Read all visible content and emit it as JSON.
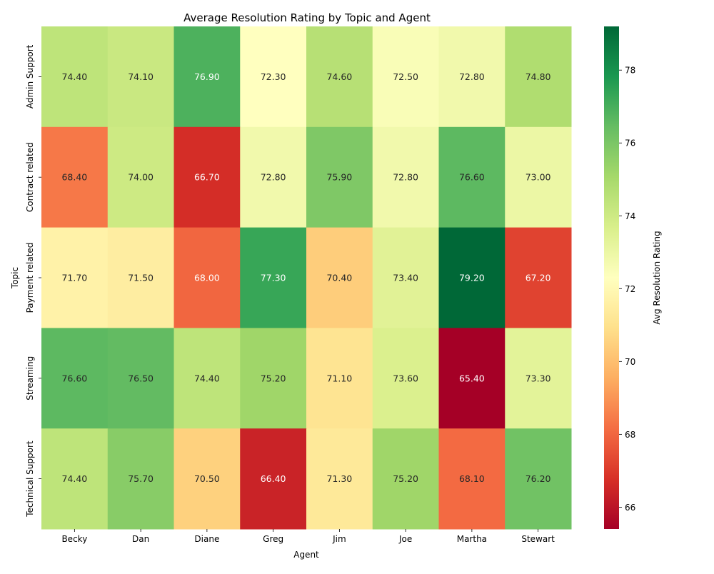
{
  "chart_data": {
    "type": "heatmap",
    "title": "Average Resolution Rating by Topic and Agent",
    "xlabel": "Agent",
    "ylabel": "Topic",
    "x_categories": [
      "Becky",
      "Dan",
      "Diane",
      "Greg",
      "Jim",
      "Joe",
      "Martha",
      "Stewart"
    ],
    "y_categories": [
      "Admin Support",
      "Contract related",
      "Payment related",
      "Streaming",
      "Technical Support"
    ],
    "values": [
      [
        74.4,
        74.1,
        76.9,
        72.3,
        74.6,
        72.5,
        72.8,
        74.8
      ],
      [
        68.4,
        74.0,
        66.7,
        72.8,
        75.9,
        72.8,
        76.6,
        73.0
      ],
      [
        71.7,
        71.5,
        68.0,
        77.3,
        70.4,
        73.4,
        79.2,
        67.2
      ],
      [
        76.6,
        76.5,
        74.4,
        75.2,
        71.1,
        73.6,
        65.4,
        73.3
      ],
      [
        74.4,
        75.7,
        70.5,
        66.4,
        71.3,
        75.2,
        68.1,
        76.2
      ]
    ],
    "value_labels": [
      [
        "74.40",
        "74.10",
        "76.90",
        "72.30",
        "74.60",
        "72.50",
        "72.80",
        "74.80"
      ],
      [
        "68.40",
        "74.00",
        "66.70",
        "72.80",
        "75.90",
        "72.80",
        "76.60",
        "73.00"
      ],
      [
        "71.70",
        "71.50",
        "68.00",
        "77.30",
        "70.40",
        "73.40",
        "79.20",
        "67.20"
      ],
      [
        "76.60",
        "76.50",
        "74.40",
        "75.20",
        "71.10",
        "73.60",
        "65.40",
        "73.30"
      ],
      [
        "74.40",
        "75.70",
        "70.50",
        "66.40",
        "71.30",
        "75.20",
        "68.10",
        "76.20"
      ]
    ],
    "colorbar": {
      "label": "Avg Resolution Rating",
      "range": [
        65.4,
        79.2
      ],
      "ticks": [
        66,
        68,
        70,
        72,
        74,
        76,
        78
      ],
      "colormap": "RdYlGn"
    }
  }
}
